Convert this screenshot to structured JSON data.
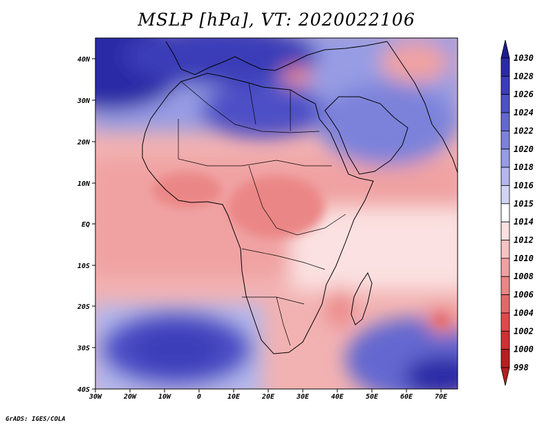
{
  "title": "MSLP [hPa], VT: 2020022106",
  "credit": "GrADS: IGES/COLA",
  "map": {
    "projection": "latlon",
    "lon_range": [
      -30,
      75
    ],
    "lat_range": [
      -40,
      45
    ]
  },
  "axes": {
    "lon_ticks": [
      "30W",
      "20W",
      "10W",
      "0",
      "10E",
      "20E",
      "30E",
      "40E",
      "50E",
      "60E",
      "70E"
    ],
    "lat_ticks": [
      "40N",
      "30N",
      "20N",
      "10N",
      "EQ",
      "10S",
      "20S",
      "30S",
      "40S"
    ]
  },
  "colorbar": {
    "levels": [
      {
        "label": "1030",
        "color": "#201c8e"
      },
      {
        "label": "1028",
        "color": "#2b2aa6"
      },
      {
        "label": "1026",
        "color": "#3a3cb8"
      },
      {
        "label": "1024",
        "color": "#4d50c6"
      },
      {
        "label": "1022",
        "color": "#6368d0"
      },
      {
        "label": "1020",
        "color": "#7c82da"
      },
      {
        "label": "1018",
        "color": "#979ce3"
      },
      {
        "label": "1016",
        "color": "#b3b7ec"
      },
      {
        "label": "1015",
        "color": "#d2d4f4"
      },
      {
        "label": "1014",
        "color": "#ffffff"
      },
      {
        "label": "1012",
        "color": "#fbe1e1"
      },
      {
        "label": "1010",
        "color": "#f6c3c3"
      },
      {
        "label": "1008",
        "color": "#f0a2a2"
      },
      {
        "label": "1006",
        "color": "#eb8686"
      },
      {
        "label": "1004",
        "color": "#e46868"
      },
      {
        "label": "1002",
        "color": "#dc4a4a"
      },
      {
        "label": "1000",
        "color": "#cc3232"
      },
      {
        "label": "998",
        "color": "#b42020"
      }
    ]
  }
}
